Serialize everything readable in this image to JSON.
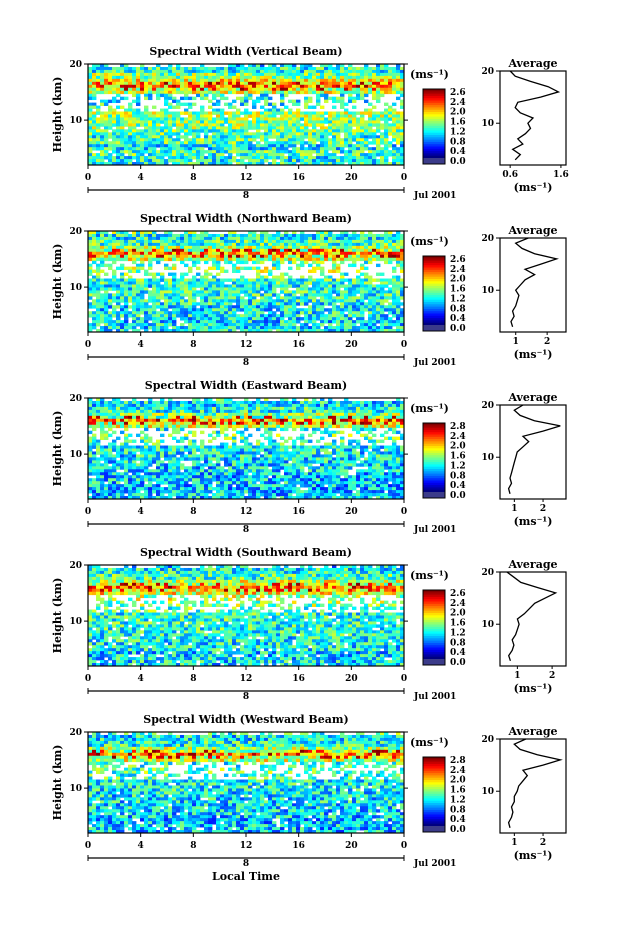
{
  "chart_data": [
    {
      "type": "heatmap",
      "title": "Spectral Width (Vertical Beam)",
      "beam": "vertical",
      "ylabel": "Height (km)",
      "xlabel": "",
      "x_ticks": [
        "0",
        "4",
        "8",
        "12",
        "16",
        "20",
        "0"
      ],
      "xlim": [
        0,
        24
      ],
      "y_ticks": [
        "20",
        "10"
      ],
      "ylim": [
        2,
        20
      ],
      "day_label": "8",
      "month_label": "Jul 2001",
      "colorbar": {
        "unit": "(ms⁻¹)",
        "ticks": [
          "2.6",
          "2.4",
          "2.0",
          "1.6",
          "1.2",
          "0.8",
          "0.4",
          "0.0"
        ],
        "range": [
          0,
          2.8
        ]
      },
      "profile": {
        "title": "Average",
        "xlabel": "(ms⁻¹)",
        "x_ticks": [
          "0.6",
          "1.6"
        ],
        "xlim": [
          0.4,
          1.7
        ],
        "y_ticks": [
          "20",
          "10"
        ],
        "points": [
          [
            0.7,
            3
          ],
          [
            0.8,
            4
          ],
          [
            0.65,
            5
          ],
          [
            0.85,
            6
          ],
          [
            0.75,
            7
          ],
          [
            0.9,
            8
          ],
          [
            1.0,
            9
          ],
          [
            0.95,
            10
          ],
          [
            1.05,
            11
          ],
          [
            0.8,
            12
          ],
          [
            0.7,
            13
          ],
          [
            0.75,
            14
          ],
          [
            1.2,
            15
          ],
          [
            1.55,
            16
          ],
          [
            1.35,
            17
          ],
          [
            1.0,
            18
          ],
          [
            0.7,
            19
          ],
          [
            0.6,
            20
          ]
        ]
      }
    },
    {
      "type": "heatmap",
      "title": "Spectral Width (Northward Beam)",
      "beam": "northward",
      "ylabel": "Height (km)",
      "xlabel": "",
      "x_ticks": [
        "0",
        "4",
        "8",
        "12",
        "16",
        "20",
        "0"
      ],
      "xlim": [
        0,
        24
      ],
      "y_ticks": [
        "20",
        "10"
      ],
      "ylim": [
        2,
        20
      ],
      "day_label": "8",
      "month_label": "Jul 2001",
      "colorbar": {
        "unit": "(ms⁻¹)",
        "ticks": [
          "2.6",
          "2.4",
          "2.0",
          "1.6",
          "1.2",
          "0.8",
          "0.4",
          "0.0"
        ],
        "range": [
          0,
          2.8
        ]
      },
      "profile": {
        "title": "Average",
        "xlabel": "(ms⁻¹)",
        "x_ticks": [
          "1",
          "2"
        ],
        "xlim": [
          0.5,
          2.6
        ],
        "y_ticks": [
          "20",
          "10"
        ],
        "points": [
          [
            0.9,
            3
          ],
          [
            0.85,
            4
          ],
          [
            0.95,
            5
          ],
          [
            0.9,
            6
          ],
          [
            1.0,
            7
          ],
          [
            1.05,
            8
          ],
          [
            1.1,
            9
          ],
          [
            1.0,
            10
          ],
          [
            1.15,
            11
          ],
          [
            1.3,
            12
          ],
          [
            1.6,
            13
          ],
          [
            1.3,
            14
          ],
          [
            1.8,
            15
          ],
          [
            2.3,
            16
          ],
          [
            1.6,
            17
          ],
          [
            1.2,
            18
          ],
          [
            1.0,
            19
          ],
          [
            1.4,
            20
          ]
        ]
      }
    },
    {
      "type": "heatmap",
      "title": "Spectral Width (Eastward Beam)",
      "beam": "eastward",
      "ylabel": "Height (km)",
      "xlabel": "",
      "x_ticks": [
        "0",
        "4",
        "8",
        "12",
        "16",
        "20",
        "0"
      ],
      "xlim": [
        0,
        24
      ],
      "y_ticks": [
        "20",
        "10"
      ],
      "ylim": [
        2,
        20
      ],
      "day_label": "8",
      "month_label": "Jul 2001",
      "colorbar": {
        "unit": "(ms⁻¹)",
        "ticks": [
          "2.8",
          "2.4",
          "2.0",
          "1.6",
          "1.2",
          "0.8",
          "0.4",
          "0.0"
        ],
        "range": [
          0,
          2.8
        ]
      },
      "profile": {
        "title": "Average",
        "xlabel": "(ms⁻¹)",
        "x_ticks": [
          "1",
          "2"
        ],
        "xlim": [
          0.5,
          2.8
        ],
        "y_ticks": [
          "20",
          "10"
        ],
        "points": [
          [
            0.85,
            3
          ],
          [
            0.8,
            4
          ],
          [
            0.9,
            5
          ],
          [
            0.85,
            6
          ],
          [
            0.9,
            7
          ],
          [
            0.95,
            8
          ],
          [
            1.0,
            9
          ],
          [
            1.05,
            10
          ],
          [
            1.1,
            11
          ],
          [
            1.3,
            12
          ],
          [
            1.5,
            13
          ],
          [
            1.3,
            14
          ],
          [
            2.0,
            15
          ],
          [
            2.6,
            16
          ],
          [
            1.7,
            17
          ],
          [
            1.2,
            18
          ],
          [
            1.0,
            19
          ],
          [
            1.3,
            20
          ]
        ]
      }
    },
    {
      "type": "heatmap",
      "title": "Spectral Width (Southward Beam)",
      "beam": "southward",
      "ylabel": "Height (km)",
      "xlabel": "",
      "x_ticks": [
        "0",
        "4",
        "8",
        "12",
        "16",
        "20",
        "0"
      ],
      "xlim": [
        0,
        24
      ],
      "y_ticks": [
        "20",
        "10"
      ],
      "ylim": [
        2,
        20
      ],
      "day_label": "8",
      "month_label": "Jul 2001",
      "colorbar": {
        "unit": "(ms⁻¹)",
        "ticks": [
          "2.6",
          "2.4",
          "2.0",
          "1.6",
          "1.2",
          "0.8",
          "0.4",
          "0.0"
        ],
        "range": [
          0,
          2.8
        ]
      },
      "profile": {
        "title": "Average",
        "xlabel": "(ms⁻¹)",
        "x_ticks": [
          "1",
          "2"
        ],
        "xlim": [
          0.5,
          2.4
        ],
        "y_ticks": [
          "20",
          "10"
        ],
        "points": [
          [
            0.8,
            3
          ],
          [
            0.75,
            4
          ],
          [
            0.85,
            5
          ],
          [
            0.9,
            6
          ],
          [
            0.85,
            7
          ],
          [
            0.95,
            8
          ],
          [
            1.0,
            9
          ],
          [
            1.05,
            10
          ],
          [
            1.0,
            11
          ],
          [
            1.2,
            12
          ],
          [
            1.35,
            13
          ],
          [
            1.5,
            14
          ],
          [
            1.8,
            15
          ],
          [
            2.1,
            16
          ],
          [
            1.6,
            17
          ],
          [
            1.1,
            18
          ],
          [
            0.9,
            19
          ],
          [
            0.7,
            20
          ]
        ]
      }
    },
    {
      "type": "heatmap",
      "title": "Spectral Width (Westward Beam)",
      "beam": "westward",
      "ylabel": "Height (km)",
      "xlabel": "Local Time",
      "x_ticks": [
        "0",
        "4",
        "8",
        "12",
        "16",
        "20",
        "0"
      ],
      "xlim": [
        0,
        24
      ],
      "y_ticks": [
        "20",
        "10"
      ],
      "ylim": [
        2,
        20
      ],
      "day_label": "8",
      "month_label": "Jul 2001",
      "colorbar": {
        "unit": "(ms⁻¹)",
        "ticks": [
          "2.8",
          "2.4",
          "2.0",
          "1.6",
          "1.2",
          "0.8",
          "0.4",
          "0.0"
        ],
        "range": [
          0,
          2.8
        ]
      },
      "profile": {
        "title": "Average",
        "xlabel": "(ms⁻¹)",
        "x_ticks": [
          "1",
          "2"
        ],
        "xlim": [
          0.5,
          2.8
        ],
        "y_ticks": [
          "20",
          "10"
        ],
        "points": [
          [
            0.85,
            3
          ],
          [
            0.8,
            4
          ],
          [
            0.9,
            5
          ],
          [
            0.95,
            6
          ],
          [
            0.9,
            7
          ],
          [
            1.0,
            8
          ],
          [
            1.0,
            9
          ],
          [
            1.1,
            10
          ],
          [
            1.15,
            11
          ],
          [
            1.3,
            12
          ],
          [
            1.45,
            13
          ],
          [
            1.3,
            14
          ],
          [
            2.0,
            15
          ],
          [
            2.6,
            16
          ],
          [
            1.8,
            17
          ],
          [
            1.2,
            18
          ],
          [
            1.0,
            19
          ],
          [
            1.4,
            20
          ]
        ]
      }
    }
  ]
}
